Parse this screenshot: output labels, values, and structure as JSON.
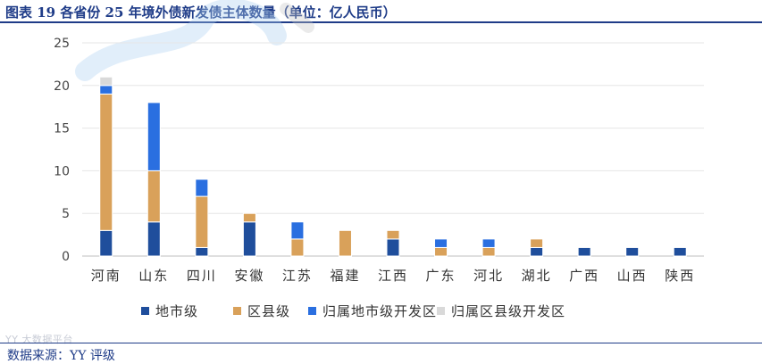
{
  "header": {
    "title": "图表 19 各省份 25 年境外债新发债主体数量（单位：亿人民币）"
  },
  "footer": {
    "source": "数据来源：YY 评级"
  },
  "watermark": {
    "text": "YY 大数据平台"
  },
  "colors": {
    "series1": "#1f4e9c",
    "series2": "#d9a15a",
    "series3": "#2a6fe0",
    "series4": "#d9d9d9",
    "axis_text": "#444444",
    "grid": "#e6e6e6",
    "header": "#1f3c88"
  },
  "chart_data": {
    "type": "bar",
    "stacked": true,
    "title": "图表 19 各省份 25 年境外债新发债主体数量（单位：亿人民币）",
    "xlabel": "",
    "ylabel": "",
    "ylim": [
      0,
      25
    ],
    "yticks": [
      0,
      5,
      10,
      15,
      20,
      25
    ],
    "grid": true,
    "legend_position": "bottom",
    "categories": [
      "河南",
      "山东",
      "四川",
      "安徽",
      "江苏",
      "福建",
      "江西",
      "广东",
      "河北",
      "湖北",
      "广西",
      "山西",
      "陕西"
    ],
    "series": [
      {
        "name": "地市级",
        "values": [
          3,
          4,
          1,
          4,
          0,
          0,
          2,
          0,
          0,
          1,
          1,
          1,
          1
        ]
      },
      {
        "name": "区县级",
        "values": [
          16,
          6,
          6,
          1,
          2,
          3,
          1,
          1,
          1,
          1,
          0,
          0,
          0
        ]
      },
      {
        "name": "归属地市级开发区",
        "values": [
          1,
          8,
          2,
          0,
          2,
          0,
          0,
          1,
          1,
          0,
          0,
          0,
          0
        ]
      },
      {
        "name": "归属区县级开发区",
        "values": [
          1,
          0,
          0,
          0,
          0,
          0,
          0,
          0,
          0,
          0,
          0,
          0,
          0
        ]
      }
    ]
  }
}
